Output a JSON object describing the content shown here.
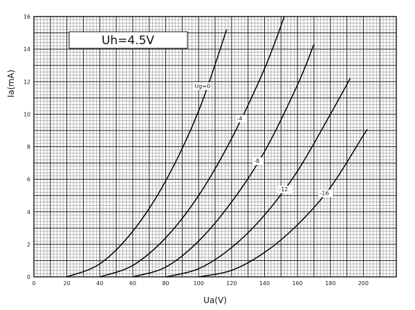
{
  "chart_data": {
    "type": "line",
    "title": "Uh=4.5V",
    "xlabel": "Ua(V)",
    "ylabel": "Ia(mA)",
    "xlim": [
      0,
      220
    ],
    "ylim": [
      0,
      16
    ],
    "x_ticks": [
      0,
      20,
      40,
      60,
      80,
      100,
      120,
      140,
      160,
      180,
      200
    ],
    "y_ticks": [
      0,
      2,
      4,
      6,
      8,
      10,
      12,
      14,
      16
    ],
    "grid": true,
    "series": [
      {
        "name": "Ug=0",
        "label": "Ug=0",
        "x": [
          20,
          40,
          60,
          80,
          100,
          117
        ],
        "y": [
          0,
          0.8,
          2.8,
          5.9,
          10.2,
          15.2
        ]
      },
      {
        "name": "-4",
        "label": "-4",
        "x": [
          40,
          60,
          80,
          100,
          120,
          140,
          152
        ],
        "y": [
          0,
          0.7,
          2.4,
          5.0,
          8.5,
          12.8,
          16.0
        ]
      },
      {
        "name": "-8",
        "label": "-8",
        "x": [
          60,
          80,
          100,
          120,
          140,
          160,
          170
        ],
        "y": [
          0,
          0.6,
          2.2,
          4.6,
          7.7,
          11.8,
          14.3
        ]
      },
      {
        "name": "-12",
        "label": "-12",
        "x": [
          80,
          100,
          120,
          140,
          160,
          180,
          192
        ],
        "y": [
          0,
          0.5,
          1.8,
          3.8,
          6.5,
          10.0,
          12.2
        ]
      },
      {
        "name": "-16",
        "label": "-16",
        "x": [
          100,
          120,
          140,
          160,
          180,
          200,
          202
        ],
        "y": [
          0,
          0.4,
          1.5,
          3.2,
          5.5,
          8.7,
          9.0
        ]
      }
    ]
  }
}
